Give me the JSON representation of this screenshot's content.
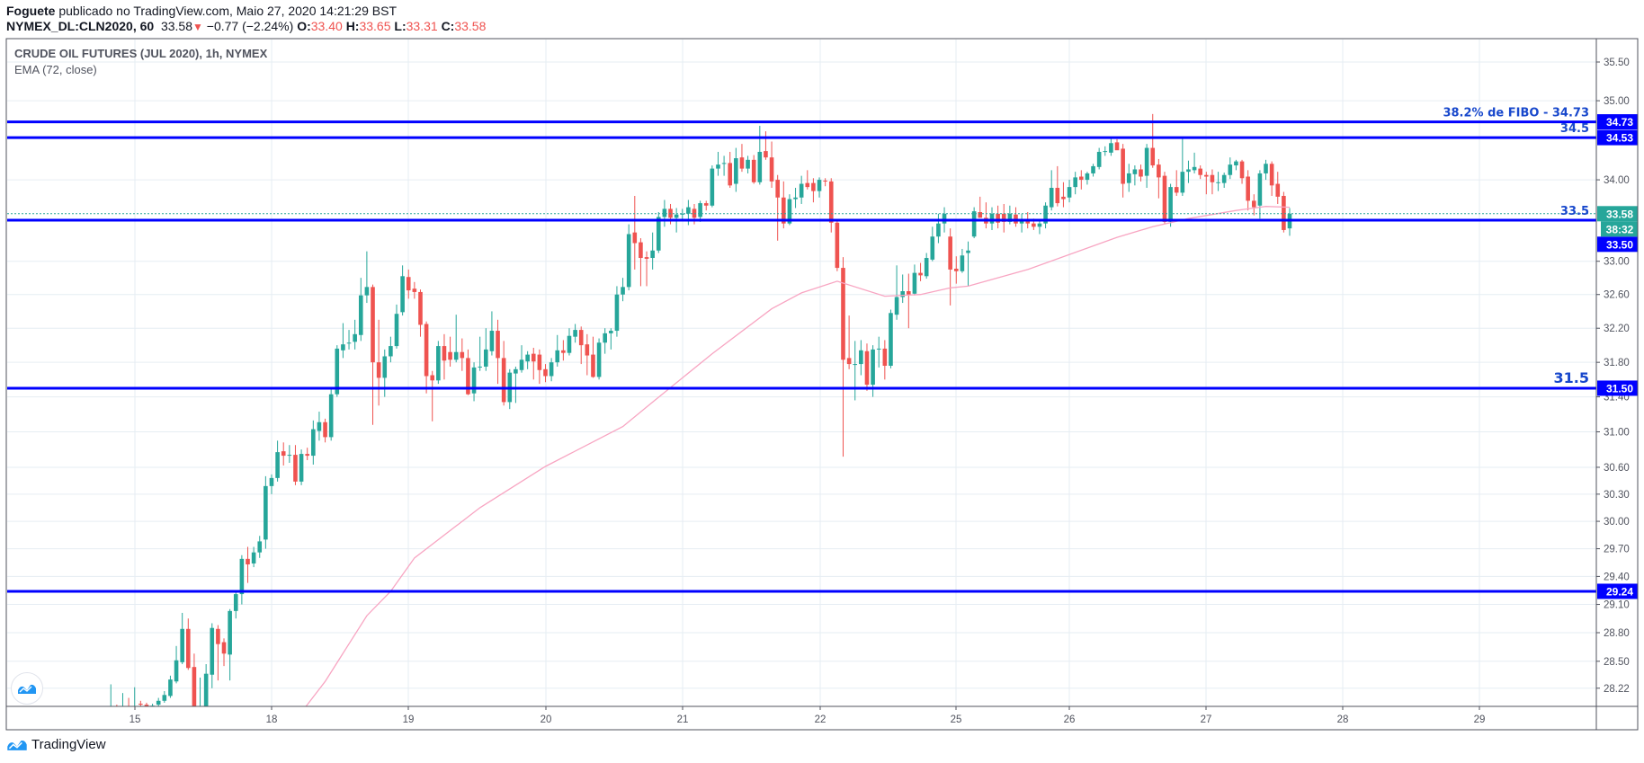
{
  "header": {
    "author": "Foguete",
    "published": " publicado no TradingView.com, Maio 27, 2020 14:21:29 BST",
    "symbol": "NYMEX_DL:CLN2020, 60",
    "last": "33.58",
    "change": "−0.77 (−2.24%)",
    "ohlc": [
      {
        "k": "O:",
        "v": "33.40"
      },
      {
        "k": "H:",
        "v": "33.65"
      },
      {
        "k": "L:",
        "v": "33.31"
      },
      {
        "k": "C:",
        "v": "33.58"
      }
    ]
  },
  "legend": {
    "title": "CRUDE OIL FUTURES (JUL 2020), 1h, NYMEX",
    "indicator": "EMA (72, close)"
  },
  "footer": {
    "brand": "TradingView"
  },
  "chart_data": {
    "type": "candlestick",
    "title": "CRUDE OIL FUTURES (JUL 2020), 1h, NYMEX",
    "scale": "log",
    "ylim": [
      28.04,
      35.79
    ],
    "grid": true,
    "colors": {
      "up": "#26a69a",
      "down": "#ef5350",
      "ema": "#f8a5c2",
      "hline": "#0000ff",
      "hline_text": "#1848cc",
      "grid": "#e6edf3"
    },
    "price_ticks": [
      "35.50",
      "35.00",
      "34.00",
      "33.00",
      "32.60",
      "32.20",
      "31.80",
      "31.40",
      "31.00",
      "30.60",
      "30.30",
      "30.00",
      "29.70",
      "29.40",
      "29.10",
      "28.80",
      "28.50",
      "28.22"
    ],
    "time_ticks": [
      "15",
      "18",
      "19",
      "20",
      "21",
      "22",
      "25",
      "26",
      "27",
      "28",
      "29"
    ],
    "last_price": {
      "value": 33.58,
      "label": "33.58",
      "countdown": "38:32"
    },
    "hlines": [
      {
        "value": 34.73,
        "text": "38.2% de FIBO - 34.73",
        "axis_label": "34.73",
        "big": false
      },
      {
        "value": 34.53,
        "text": "34.5",
        "axis_label": "34.53",
        "big": false
      },
      {
        "value": 33.5,
        "text": "33.5",
        "axis_label": "33.50",
        "big": false
      },
      {
        "value": 31.5,
        "text": "31.5",
        "axis_label": "31.50",
        "big": true
      },
      {
        "value": 29.24,
        "text": "",
        "axis_label": "29.24",
        "big": false
      }
    ],
    "ema": {
      "name": "EMA (72, close)",
      "points": [
        [
          31,
          27.9
        ],
        [
          33,
          28.05
        ],
        [
          36,
          28.29
        ],
        [
          43,
          28.98
        ],
        [
          47,
          29.24
        ],
        [
          51,
          29.6
        ],
        [
          62,
          30.15
        ],
        [
          73,
          30.61
        ],
        [
          86,
          31.06
        ],
        [
          91,
          31.34
        ],
        [
          101,
          31.9
        ],
        [
          111,
          32.43
        ],
        [
          116,
          32.62
        ],
        [
          122,
          32.76
        ],
        [
          130,
          32.58
        ],
        [
          136,
          32.6
        ],
        [
          141,
          32.68
        ],
        [
          144,
          32.7
        ],
        [
          154,
          32.9
        ],
        [
          169,
          33.29
        ],
        [
          175,
          33.42
        ],
        [
          181,
          33.52
        ],
        [
          189,
          33.62
        ],
        [
          194,
          33.67
        ],
        [
          198,
          33.66
        ]
      ]
    },
    "candles": [
      [
        28.0,
        28.26,
        27.95,
        28.02
      ],
      [
        28.02,
        28.05,
        27.95,
        28.0
      ],
      [
        28.0,
        28.17,
        27.96,
        28.03
      ],
      [
        28.03,
        28.12,
        27.96,
        27.98
      ],
      [
        27.98,
        28.23,
        27.95,
        28.02
      ],
      [
        28.06,
        28.09,
        28.0,
        28.05
      ],
      [
        28.05,
        28.07,
        27.98,
        28.01
      ],
      [
        28.01,
        28.06,
        27.97,
        28.04
      ],
      [
        28.05,
        28.12,
        28.02,
        28.09
      ],
      [
        28.09,
        28.19,
        28.07,
        28.15
      ],
      [
        28.14,
        28.35,
        28.12,
        28.31
      ],
      [
        28.29,
        28.66,
        28.27,
        28.51
      ],
      [
        28.49,
        29.01,
        28.47,
        28.84
      ],
      [
        28.84,
        28.95,
        28.41,
        28.43
      ],
      [
        28.44,
        28.58,
        27.9,
        27.95
      ],
      [
        27.95,
        28.33,
        27.9,
        28.0
      ],
      [
        28.0,
        28.47,
        27.95,
        28.37
      ],
      [
        28.36,
        28.9,
        28.22,
        28.85
      ],
      [
        28.84,
        28.88,
        28.3,
        28.68
      ],
      [
        28.7,
        28.74,
        28.45,
        28.58
      ],
      [
        28.57,
        29.05,
        28.3,
        29.03
      ],
      [
        29.03,
        29.25,
        28.95,
        29.21
      ],
      [
        29.21,
        29.63,
        29.1,
        29.59
      ],
      [
        29.59,
        29.72,
        29.33,
        29.53
      ],
      [
        29.54,
        29.72,
        29.5,
        29.66
      ],
      [
        29.66,
        29.84,
        29.6,
        29.78
      ],
      [
        29.8,
        30.5,
        29.7,
        30.39
      ],
      [
        30.39,
        30.52,
        30.3,
        30.48
      ],
      [
        30.48,
        30.9,
        30.44,
        30.77
      ],
      [
        30.78,
        30.88,
        30.62,
        30.73
      ],
      [
        30.74,
        30.85,
        30.65,
        30.74
      ],
      [
        30.74,
        30.85,
        30.4,
        30.44
      ],
      [
        30.44,
        30.8,
        30.4,
        30.75
      ],
      [
        30.75,
        30.82,
        30.68,
        30.73
      ],
      [
        30.73,
        31.13,
        30.63,
        31.03
      ],
      [
        31.01,
        31.23,
        30.9,
        31.11
      ],
      [
        31.11,
        31.15,
        30.88,
        30.94
      ],
      [
        30.94,
        31.5,
        30.9,
        31.43
      ],
      [
        31.43,
        32.0,
        31.4,
        31.96
      ],
      [
        31.94,
        32.26,
        31.85,
        32.01
      ],
      [
        32.03,
        32.18,
        31.95,
        32.03
      ],
      [
        32.04,
        32.3,
        31.95,
        32.13
      ],
      [
        32.12,
        32.8,
        32.05,
        32.59
      ],
      [
        32.59,
        33.12,
        32.5,
        32.69
      ],
      [
        32.69,
        32.72,
        31.08,
        31.8
      ],
      [
        31.8,
        32.3,
        31.3,
        31.62
      ],
      [
        31.62,
        31.95,
        31.4,
        31.87
      ],
      [
        31.87,
        32.1,
        31.8,
        31.99
      ],
      [
        31.99,
        32.48,
        31.96,
        32.37
      ],
      [
        32.39,
        32.95,
        32.35,
        32.82
      ],
      [
        32.81,
        32.9,
        32.55,
        32.65
      ],
      [
        32.67,
        32.75,
        32.55,
        32.63
      ],
      [
        32.63,
        32.66,
        32.1,
        32.24
      ],
      [
        32.25,
        32.28,
        31.44,
        31.64
      ],
      [
        31.65,
        31.7,
        31.12,
        31.59
      ],
      [
        31.59,
        32.05,
        31.55,
        31.99
      ],
      [
        31.99,
        32.13,
        31.6,
        31.82
      ],
      [
        31.92,
        32.1,
        31.75,
        31.83
      ],
      [
        31.83,
        32.36,
        31.8,
        31.92
      ],
      [
        31.92,
        32.08,
        31.7,
        31.85
      ],
      [
        31.85,
        31.95,
        31.42,
        31.43
      ],
      [
        31.44,
        31.8,
        31.35,
        31.74
      ],
      [
        31.75,
        32.1,
        31.7,
        31.75
      ],
      [
        31.75,
        32.2,
        31.7,
        31.95
      ],
      [
        31.93,
        32.4,
        31.88,
        32.17
      ],
      [
        32.17,
        32.3,
        31.55,
        31.85
      ],
      [
        31.85,
        32.05,
        31.3,
        31.34
      ],
      [
        31.34,
        31.72,
        31.26,
        31.68
      ],
      [
        31.67,
        31.75,
        31.33,
        31.72
      ],
      [
        31.71,
        32.0,
        31.68,
        31.83
      ],
      [
        31.81,
        31.93,
        31.72,
        31.89
      ],
      [
        31.9,
        31.97,
        31.6,
        31.81
      ],
      [
        31.89,
        31.95,
        31.55,
        31.71
      ],
      [
        31.72,
        31.78,
        31.57,
        31.64
      ],
      [
        31.64,
        31.85,
        31.58,
        31.8
      ],
      [
        31.8,
        32.12,
        31.75,
        31.94
      ],
      [
        31.94,
        32.06,
        31.82,
        31.91
      ],
      [
        31.91,
        32.2,
        31.88,
        32.11
      ],
      [
        32.1,
        32.25,
        32.03,
        32.18
      ],
      [
        32.18,
        32.22,
        31.78,
        32.0
      ],
      [
        32.01,
        32.13,
        31.65,
        31.88
      ],
      [
        31.89,
        32.1,
        31.62,
        31.63
      ],
      [
        31.63,
        32.08,
        31.6,
        32.03
      ],
      [
        32.03,
        32.2,
        31.9,
        32.14
      ],
      [
        32.14,
        32.2,
        31.95,
        32.17
      ],
      [
        32.17,
        32.7,
        32.1,
        32.6
      ],
      [
        32.6,
        32.8,
        32.52,
        32.69
      ],
      [
        32.69,
        33.45,
        32.65,
        33.33
      ],
      [
        33.35,
        33.8,
        32.9,
        33.22
      ],
      [
        33.23,
        33.28,
        32.7,
        33.04
      ],
      [
        33.05,
        33.12,
        32.7,
        33.03
      ],
      [
        33.04,
        33.35,
        32.9,
        33.13
      ],
      [
        33.13,
        33.6,
        33.1,
        33.54
      ],
      [
        33.54,
        33.75,
        33.42,
        33.64
      ],
      [
        33.64,
        33.7,
        33.45,
        33.53
      ],
      [
        33.53,
        33.65,
        33.35,
        33.57
      ],
      [
        33.58,
        33.64,
        33.5,
        33.58
      ],
      [
        33.58,
        33.75,
        33.44,
        33.66
      ],
      [
        33.64,
        33.7,
        33.45,
        33.53
      ],
      [
        33.54,
        33.74,
        33.48,
        33.71
      ],
      [
        33.71,
        33.74,
        33.62,
        33.68
      ],
      [
        33.68,
        34.18,
        33.66,
        34.14
      ],
      [
        34.14,
        34.35,
        34.05,
        34.19
      ],
      [
        34.2,
        34.3,
        34.05,
        34.21
      ],
      [
        34.21,
        34.35,
        33.9,
        33.93
      ],
      [
        33.95,
        34.4,
        33.85,
        34.27
      ],
      [
        34.28,
        34.45,
        34.1,
        34.14
      ],
      [
        34.14,
        34.3,
        34.08,
        34.25
      ],
      [
        34.25,
        34.31,
        33.95,
        33.97
      ],
      [
        33.97,
        34.68,
        33.94,
        34.35
      ],
      [
        34.36,
        34.61,
        34.25,
        34.28
      ],
      [
        34.28,
        34.48,
        33.9,
        33.98
      ],
      [
        34.0,
        34.06,
        33.25,
        33.78
      ],
      [
        33.78,
        33.98,
        33.4,
        33.46
      ],
      [
        33.46,
        33.82,
        33.44,
        33.76
      ],
      [
        33.76,
        33.9,
        33.65,
        33.78
      ],
      [
        33.78,
        34.05,
        33.7,
        33.95
      ],
      [
        33.96,
        34.12,
        33.88,
        33.91
      ],
      [
        33.96,
        34.02,
        33.72,
        33.86
      ],
      [
        33.86,
        34.03,
        33.78,
        34.0
      ],
      [
        33.99,
        34.02,
        33.92,
        33.98
      ],
      [
        33.98,
        34.02,
        33.35,
        33.47
      ],
      [
        33.47,
        33.5,
        32.88,
        32.92
      ],
      [
        32.92,
        33.05,
        30.72,
        31.83
      ],
      [
        31.85,
        32.35,
        31.72,
        31.78
      ],
      [
        31.78,
        32.05,
        31.36,
        31.78
      ],
      [
        31.78,
        32.06,
        31.65,
        31.94
      ],
      [
        31.93,
        32.02,
        31.47,
        31.54
      ],
      [
        31.54,
        32.0,
        31.4,
        31.95
      ],
      [
        31.95,
        32.1,
        31.74,
        31.96
      ],
      [
        31.96,
        32.06,
        31.6,
        31.76
      ],
      [
        31.76,
        32.42,
        31.73,
        32.38
      ],
      [
        32.36,
        32.95,
        32.3,
        32.57
      ],
      [
        32.57,
        32.84,
        32.5,
        32.64
      ],
      [
        32.64,
        32.85,
        32.2,
        32.6
      ],
      [
        32.61,
        32.96,
        32.59,
        32.86
      ],
      [
        32.86,
        32.98,
        32.76,
        32.83
      ],
      [
        32.82,
        33.1,
        32.79,
        33.04
      ],
      [
        33.02,
        33.42,
        33.0,
        33.3
      ],
      [
        33.3,
        33.58,
        33.22,
        33.46
      ],
      [
        33.46,
        33.66,
        33.35,
        33.58
      ],
      [
        33.3,
        33.4,
        32.47,
        32.9
      ],
      [
        32.91,
        33.06,
        32.73,
        32.88
      ],
      [
        32.88,
        33.15,
        32.86,
        33.07
      ],
      [
        33.1,
        33.24,
        32.7,
        33.13
      ],
      [
        33.3,
        33.66,
        33.28,
        33.61
      ],
      [
        33.6,
        33.79,
        33.53,
        33.53
      ],
      [
        33.53,
        33.72,
        33.4,
        33.46
      ],
      [
        33.46,
        33.66,
        33.38,
        33.58
      ],
      [
        33.58,
        33.68,
        33.4,
        33.47
      ],
      [
        33.58,
        33.7,
        33.35,
        33.48
      ],
      [
        33.48,
        33.68,
        33.45,
        33.58
      ],
      [
        33.57,
        33.66,
        33.42,
        33.46
      ],
      [
        33.46,
        33.58,
        33.35,
        33.51
      ],
      [
        33.51,
        33.6,
        33.4,
        33.46
      ],
      [
        33.46,
        33.52,
        33.38,
        33.42
      ],
      [
        33.42,
        33.51,
        33.33,
        33.46
      ],
      [
        33.46,
        33.72,
        33.4,
        33.68
      ],
      [
        33.66,
        34.12,
        33.62,
        33.9
      ],
      [
        33.9,
        34.17,
        33.67,
        33.71
      ],
      [
        33.79,
        33.97,
        33.66,
        33.76
      ],
      [
        33.78,
        34.0,
        33.72,
        33.91
      ],
      [
        33.91,
        34.1,
        33.82,
        34.03
      ],
      [
        34.04,
        34.12,
        33.88,
        34.0
      ],
      [
        34.0,
        34.1,
        33.94,
        34.08
      ],
      [
        34.08,
        34.2,
        34.04,
        34.17
      ],
      [
        34.16,
        34.4,
        34.13,
        34.35
      ],
      [
        34.35,
        34.42,
        34.3,
        34.36
      ],
      [
        34.34,
        34.53,
        34.3,
        34.46
      ],
      [
        34.47,
        34.51,
        34.41,
        34.37
      ],
      [
        34.39,
        34.45,
        33.78,
        33.95
      ],
      [
        33.96,
        34.2,
        33.85,
        34.08
      ],
      [
        34.07,
        34.18,
        33.93,
        34.13
      ],
      [
        34.13,
        34.19,
        33.98,
        34.04
      ],
      [
        34.05,
        34.45,
        33.9,
        34.4
      ],
      [
        34.4,
        34.83,
        34.15,
        34.18
      ],
      [
        34.19,
        34.26,
        33.77,
        34.03
      ],
      [
        34.05,
        34.1,
        33.46,
        33.48
      ],
      [
        33.48,
        33.95,
        33.42,
        33.91
      ],
      [
        33.91,
        34.12,
        33.8,
        33.84
      ],
      [
        33.84,
        34.53,
        33.8,
        34.1
      ],
      [
        34.1,
        34.24,
        33.96,
        34.13
      ],
      [
        34.12,
        34.34,
        34.08,
        34.16
      ],
      [
        34.14,
        34.18,
        34.01,
        34.06
      ],
      [
        34.06,
        34.1,
        33.82,
        34.04
      ],
      [
        34.06,
        34.13,
        33.82,
        33.97
      ],
      [
        33.97,
        34.1,
        33.86,
        33.97
      ],
      [
        33.96,
        34.09,
        33.9,
        34.06
      ],
      [
        34.06,
        34.28,
        34.01,
        34.19
      ],
      [
        34.18,
        34.25,
        34.12,
        34.23
      ],
      [
        34.23,
        34.25,
        33.95,
        34.02
      ],
      [
        34.04,
        34.12,
        33.62,
        33.74
      ],
      [
        33.74,
        33.82,
        33.56,
        33.66
      ],
      [
        33.68,
        34.12,
        33.52,
        34.08
      ],
      [
        34.08,
        34.25,
        34.0,
        34.2
      ],
      [
        34.2,
        34.23,
        33.8,
        33.93
      ],
      [
        33.95,
        34.1,
        33.7,
        33.79
      ],
      [
        33.8,
        33.85,
        33.35,
        33.38
      ],
      [
        33.4,
        33.65,
        33.31,
        33.58
      ]
    ]
  }
}
